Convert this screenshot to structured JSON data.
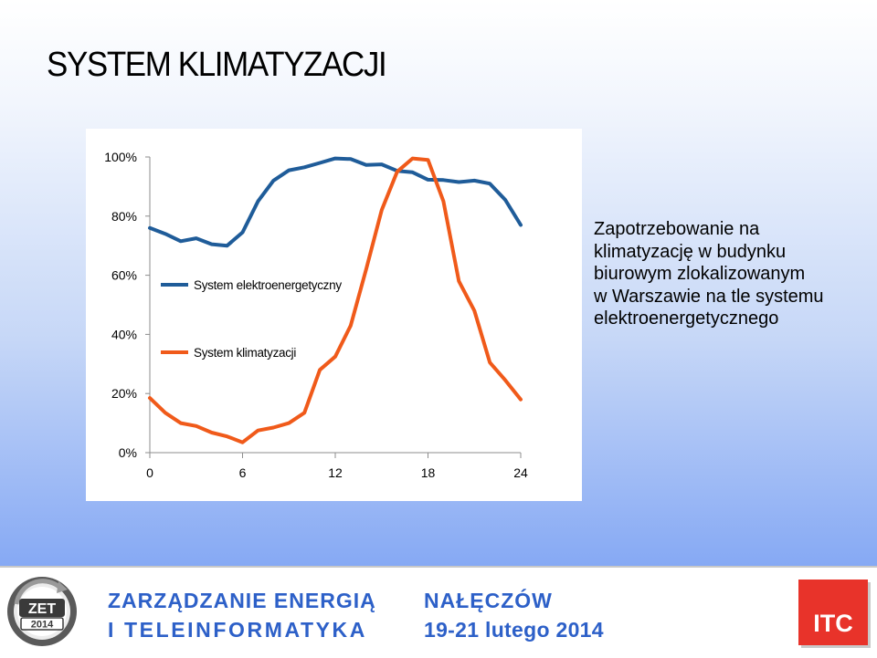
{
  "slide": {
    "title": "SYSTEM KLIMATYZACJI",
    "description_lines": [
      "Zapotrzebowanie na",
      "klimatyzację w budynku",
      "biurowym zlokalizowanym",
      "w Warszawie na tle systemu",
      "elektroenergetycznego"
    ]
  },
  "chart_data": {
    "type": "line",
    "title": "",
    "xlabel": "",
    "ylabel": "",
    "xlim": [
      0,
      24
    ],
    "ylim": [
      0,
      100
    ],
    "x_ticks": [
      "0",
      "6",
      "12",
      "18",
      "24"
    ],
    "y_ticks": [
      "0%",
      "20%",
      "40%",
      "60%",
      "80%",
      "100%"
    ],
    "grid": false,
    "legend_position": "inside-left",
    "x": [
      0,
      1,
      2,
      3,
      4,
      5,
      6,
      7,
      8,
      9,
      10,
      11,
      12,
      13,
      14,
      15,
      16,
      17,
      18,
      19,
      20,
      21,
      22,
      23,
      24
    ],
    "series": [
      {
        "name": "System elektroenergetyczny",
        "color": "#1f5c99",
        "values": [
          76,
          74,
          71.5,
          72.5,
          70.5,
          70,
          74.5,
          85,
          92,
          95.5,
          96.5,
          98,
          99.5,
          99.3,
          97.3,
          97.5,
          95.3,
          94.8,
          92.3,
          92.2,
          91.5,
          92,
          91,
          85.5,
          77
        ]
      },
      {
        "name": "System klimatyzacji",
        "color": "#f05a1a",
        "values": [
          18.5,
          13.5,
          10,
          9,
          6.8,
          5.5,
          3.5,
          7.5,
          8.5,
          10,
          13.5,
          28,
          32.5,
          43,
          62,
          82,
          95,
          99.5,
          99,
          85,
          58,
          48,
          30.5,
          24.5,
          18
        ]
      }
    ]
  },
  "footer": {
    "line1_left": "ZARZĄDZANIE ENERGIĄ",
    "line2_left": "I TELEINFORMATYKA",
    "line1_right": "NAŁĘCZÓW",
    "line2_right": "19-21 lutego 2014",
    "logo_text_top": "ZET",
    "logo_text_bottom": "2014",
    "badge": "ITC",
    "text_color": "#2d60c8",
    "badge_color": "#e8332a"
  }
}
